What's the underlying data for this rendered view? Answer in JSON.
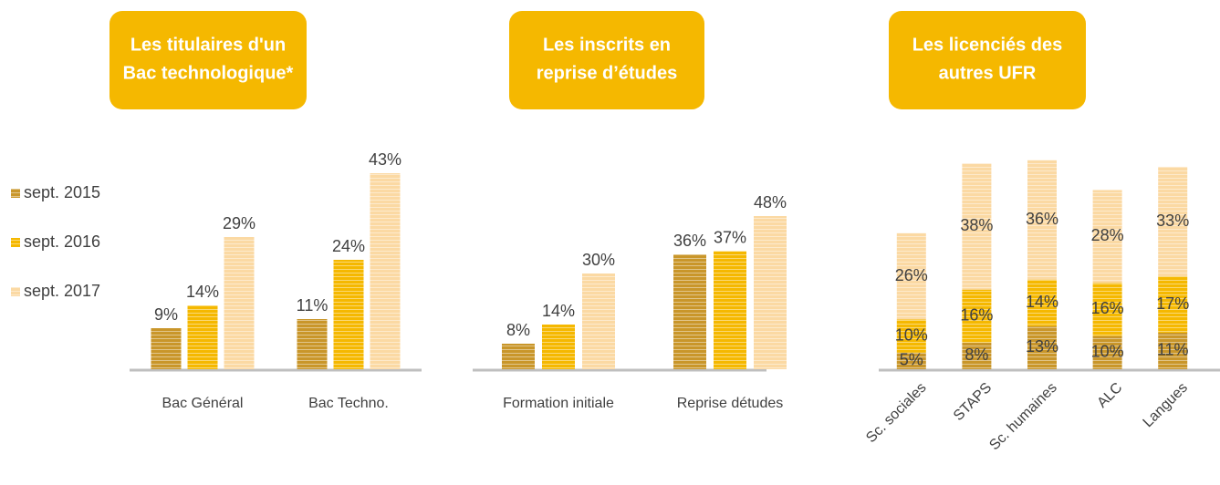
{
  "chart_data": [
    {
      "type": "bar",
      "title": [
        "Les titulaires d'un",
        "Bac technologique*"
      ],
      "categories": [
        "Bac Général",
        "Bac Techno."
      ],
      "series": [
        {
          "name": "sept. 2015",
          "color": "#c9962a",
          "values": [
            9,
            11
          ],
          "value_labels": [
            "9%",
            "11%"
          ]
        },
        {
          "name": "sept. 2016",
          "color": "#f5b800",
          "values": [
            14,
            24
          ],
          "value_labels": [
            "14%",
            "24%"
          ]
        },
        {
          "name": "sept. 2017",
          "color": "#fbd9a3",
          "values": [
            29,
            43
          ],
          "value_labels": [
            "29%",
            "43%"
          ]
        }
      ]
    },
    {
      "type": "bar",
      "title": [
        "Les inscrits en",
        "reprise d’études"
      ],
      "categories": [
        "Formation initiale",
        "Reprise détudes"
      ],
      "series": [
        {
          "color": "#c9962a",
          "values": [
            8,
            36
          ],
          "value_labels": [
            "8%",
            "36%"
          ]
        },
        {
          "color": "#f5b800",
          "values": [
            14,
            37
          ],
          "value_labels": [
            "14%",
            "37%"
          ]
        },
        {
          "color": "#fbd9a3",
          "values": [
            30,
            48
          ],
          "value_labels": [
            "30%",
            "48%"
          ]
        }
      ]
    },
    {
      "type": "stacked_bar",
      "title": [
        "Les licenciés des",
        "autres UFR"
      ],
      "categories": [
        "Sc. sociales",
        "STAPS",
        "Sc. humaines",
        "ALC",
        "Langues"
      ],
      "series": [
        {
          "color": "#c9962a",
          "values": [
            5,
            8,
            13,
            10,
            11
          ],
          "value_labels": [
            "5%",
            "8%",
            "13%",
            "10%",
            "11%"
          ]
        },
        {
          "color": "#f5b800",
          "values": [
            10,
            16,
            14,
            16,
            17
          ],
          "value_labels": [
            "10%",
            "16%",
            "14%",
            "16%",
            "17%"
          ]
        },
        {
          "color": "#fbd9a3",
          "values": [
            26,
            38,
            36,
            28,
            33
          ],
          "value_labels": [
            "26%",
            "38%",
            "36%",
            "28%",
            "33%"
          ]
        }
      ]
    }
  ]
}
